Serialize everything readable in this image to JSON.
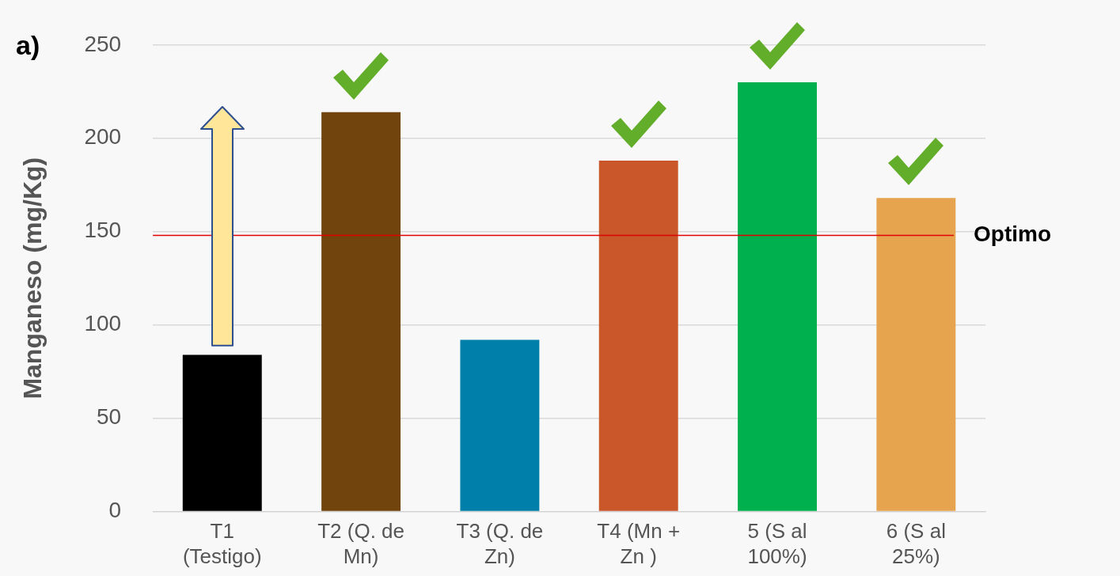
{
  "chart_data": {
    "type": "bar",
    "ylabel": "Manganeso (mg/Kg)",
    "categories": [
      "T1 (Testigo)",
      "T2 (Q. de Mn)",
      "T3 (Q. de Zn)",
      "T4 (Mn + Zn )",
      "5 (S al 100%)",
      "6 (S al 25%)"
    ],
    "values": [
      84,
      214,
      92,
      188,
      230,
      168
    ],
    "colors": [
      "#000000",
      "#70440c",
      "#007fab",
      "#c9572a",
      "#00b04f",
      "#e6a44f"
    ],
    "ylim": [
      0,
      250
    ],
    "yticks": [
      0,
      50,
      100,
      150,
      200,
      250
    ],
    "grid": "y",
    "legend": false,
    "ref_lines": [
      {
        "axis": "y",
        "value": 148,
        "label": "Optimo",
        "color": "#e00000"
      }
    ],
    "annotations": [
      "a)"
    ]
  }
}
